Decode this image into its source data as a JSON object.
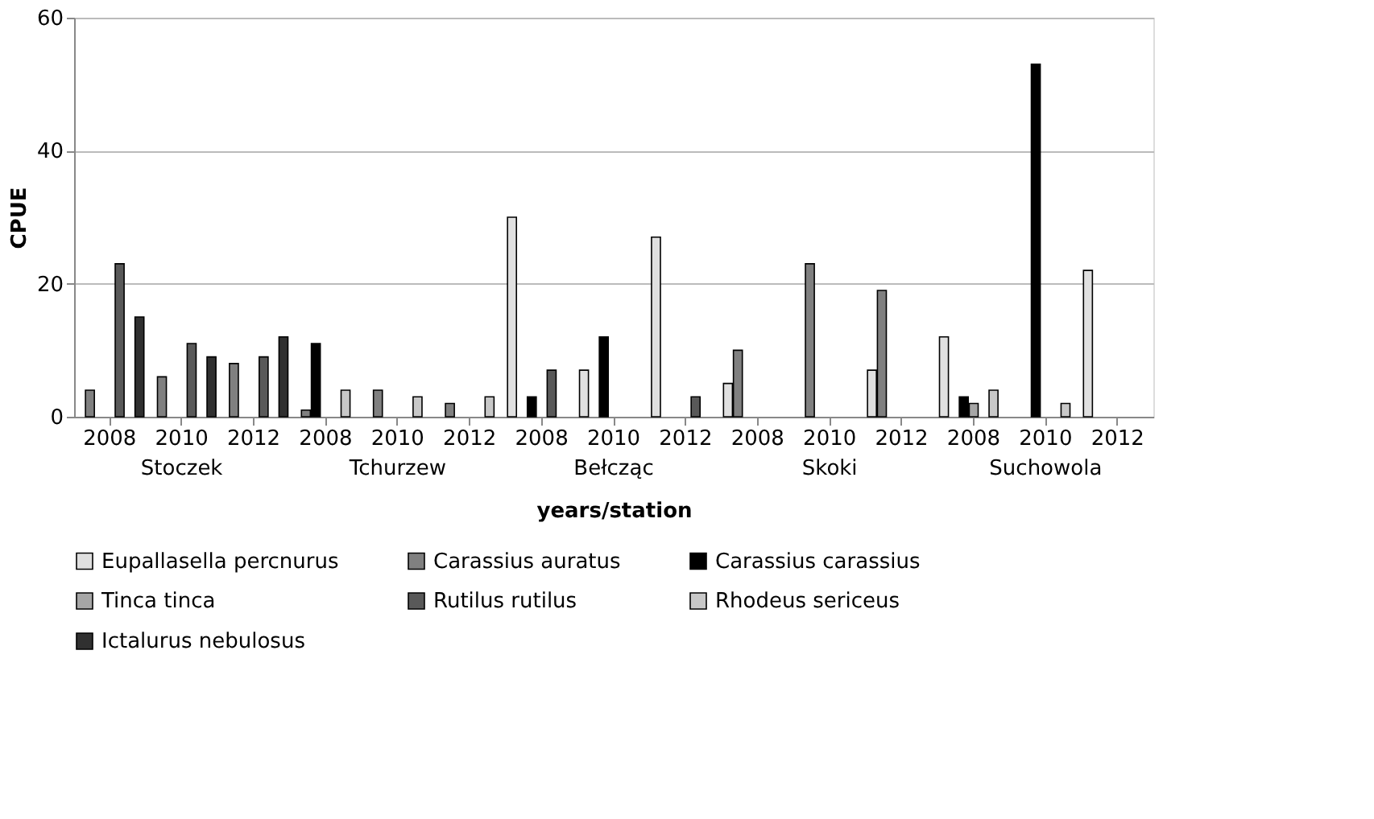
{
  "chart_data": {
    "type": "bar",
    "xlabel": "years/station",
    "ylabel": "CPUE",
    "categories": [
      "2008",
      "2010",
      "2012",
      "2008",
      "2010",
      "2012",
      "2008",
      "2010",
      "2012",
      "2008",
      "2010",
      "2012",
      "2008",
      "2010",
      "2012"
    ],
    "annotations": [
      "Stoczek",
      "Tchurzew",
      "Bełcząc",
      "Skoki",
      "Suchowola"
    ],
    "series": [
      {
        "name": "Eupallasella percnurus",
        "color": "#e0e0e0",
        "values": [
          null,
          null,
          null,
          null,
          null,
          null,
          30,
          7,
          27,
          5,
          null,
          7,
          12,
          null,
          22
        ]
      },
      {
        "name": "Carassius auratus",
        "color": "#808080",
        "values": [
          4,
          6,
          8,
          1,
          4,
          2,
          null,
          null,
          null,
          10,
          23,
          19,
          null,
          null,
          null
        ]
      },
      {
        "name": "Carassius carassius",
        "color": "#000000",
        "values": [
          null,
          null,
          null,
          11,
          null,
          null,
          3,
          12,
          null,
          null,
          null,
          null,
          3,
          53,
          null
        ]
      },
      {
        "name": "Tinca tinca",
        "color": "#a6a6a6",
        "values": [
          null,
          null,
          null,
          null,
          null,
          null,
          null,
          null,
          null,
          null,
          null,
          null,
          2,
          null,
          null
        ]
      },
      {
        "name": "Rutilus rutilus",
        "color": "#595959",
        "values": [
          23,
          11,
          9,
          null,
          null,
          null,
          7,
          null,
          3,
          null,
          null,
          null,
          null,
          null,
          null
        ]
      },
      {
        "name": "Rhodeus sericeus",
        "color": "#c8c8c8",
        "values": [
          null,
          null,
          null,
          4,
          3,
          3,
          null,
          null,
          null,
          null,
          null,
          null,
          4,
          2,
          null
        ]
      },
      {
        "name": "Ictalurus nebulosus",
        "color": "#303030",
        "values": [
          15,
          9,
          12,
          null,
          null,
          null,
          null,
          null,
          null,
          null,
          null,
          null,
          null,
          null,
          null
        ]
      }
    ],
    "ylim": [
      0,
      60
    ],
    "yticks": [
      0,
      20,
      40,
      60
    ],
    "grid": "y",
    "legend": "bottom"
  }
}
